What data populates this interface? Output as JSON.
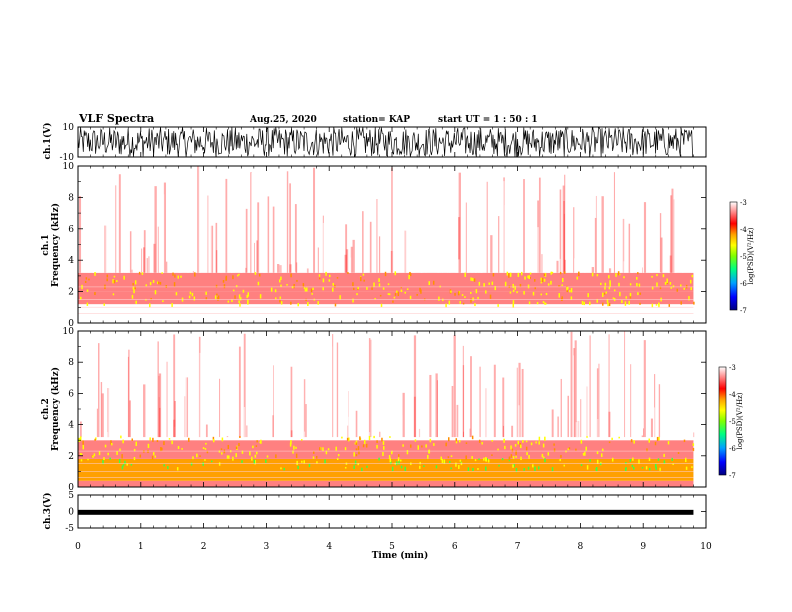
{
  "header": {
    "title": "VLF Spectra",
    "date": "Aug.25, 2020",
    "station": "station= KAP",
    "start": "start UT =  1 : 50 : 1"
  },
  "xaxis": {
    "label": "Time (min)",
    "ticks": [
      "0",
      "1",
      "2",
      "3",
      "4",
      "5",
      "6",
      "7",
      "8",
      "9",
      "10"
    ],
    "range": [
      0,
      10
    ]
  },
  "colorbar": {
    "label": "log(PSD)(V²/Hz)",
    "ticks": [
      "-3",
      "-4",
      "-5",
      "-6",
      "-7"
    ],
    "range": [
      -7,
      -3
    ],
    "colors": [
      "#000080",
      "#0000ff",
      "#00a0ff",
      "#00ff80",
      "#80ff00",
      "#ffff00",
      "#ffa000",
      "#ff0000",
      "#ff8080",
      "#ffffff"
    ]
  },
  "chart_data": [
    {
      "type": "line",
      "name": "ch.1 waveform",
      "ylabel": "ch.1(V)",
      "yticks": [
        "10",
        "-10"
      ],
      "ylim": [
        -10,
        10
      ],
      "xlim": [
        0,
        9.8
      ],
      "description_values": "broadband noise spanning approximately -10 to 10 V"
    },
    {
      "type": "heatmap",
      "name": "ch.1 spectrogram",
      "ylabel": "ch.1\nFrequency (kHz)",
      "yticks": [
        "10",
        "8",
        "6",
        "4",
        "2",
        "0"
      ],
      "ylim": [
        0,
        10
      ],
      "xlim": [
        0,
        9.8
      ],
      "bands": [
        {
          "f": [
            0.0,
            0.4
          ],
          "level": -3.4
        },
        {
          "f": [
            0.4,
            1.2
          ],
          "level": -3.3
        },
        {
          "f": [
            1.2,
            2.0
          ],
          "level": -3.6
        },
        {
          "f": [
            2.0,
            3.2
          ],
          "level": -3.8
        },
        {
          "f": [
            3.2,
            10.0
          ],
          "level": -3.3
        }
      ]
    },
    {
      "type": "heatmap",
      "name": "ch.2 spectrogram",
      "ylabel": "ch.2\nFrequency (kHz)",
      "yticks": [
        "10",
        "8",
        "6",
        "4",
        "2",
        "0"
      ],
      "ylim": [
        0,
        10
      ],
      "xlim": [
        0,
        9.8
      ],
      "bands": [
        {
          "f": [
            0.0,
            0.4
          ],
          "level": -3.5
        },
        {
          "f": [
            0.4,
            1.8
          ],
          "level": -4.6
        },
        {
          "f": [
            1.8,
            3.0
          ],
          "level": -3.8
        },
        {
          "f": [
            3.0,
            10.0
          ],
          "level": -3.3
        }
      ]
    },
    {
      "type": "line",
      "name": "ch.3 waveform",
      "ylabel": "ch.3(V)",
      "yticks": [
        "5",
        "0",
        "-5"
      ],
      "ylim": [
        -5,
        5
      ],
      "xlim": [
        0,
        9.8
      ],
      "values_range": [
        -1.0,
        0.5
      ]
    }
  ]
}
